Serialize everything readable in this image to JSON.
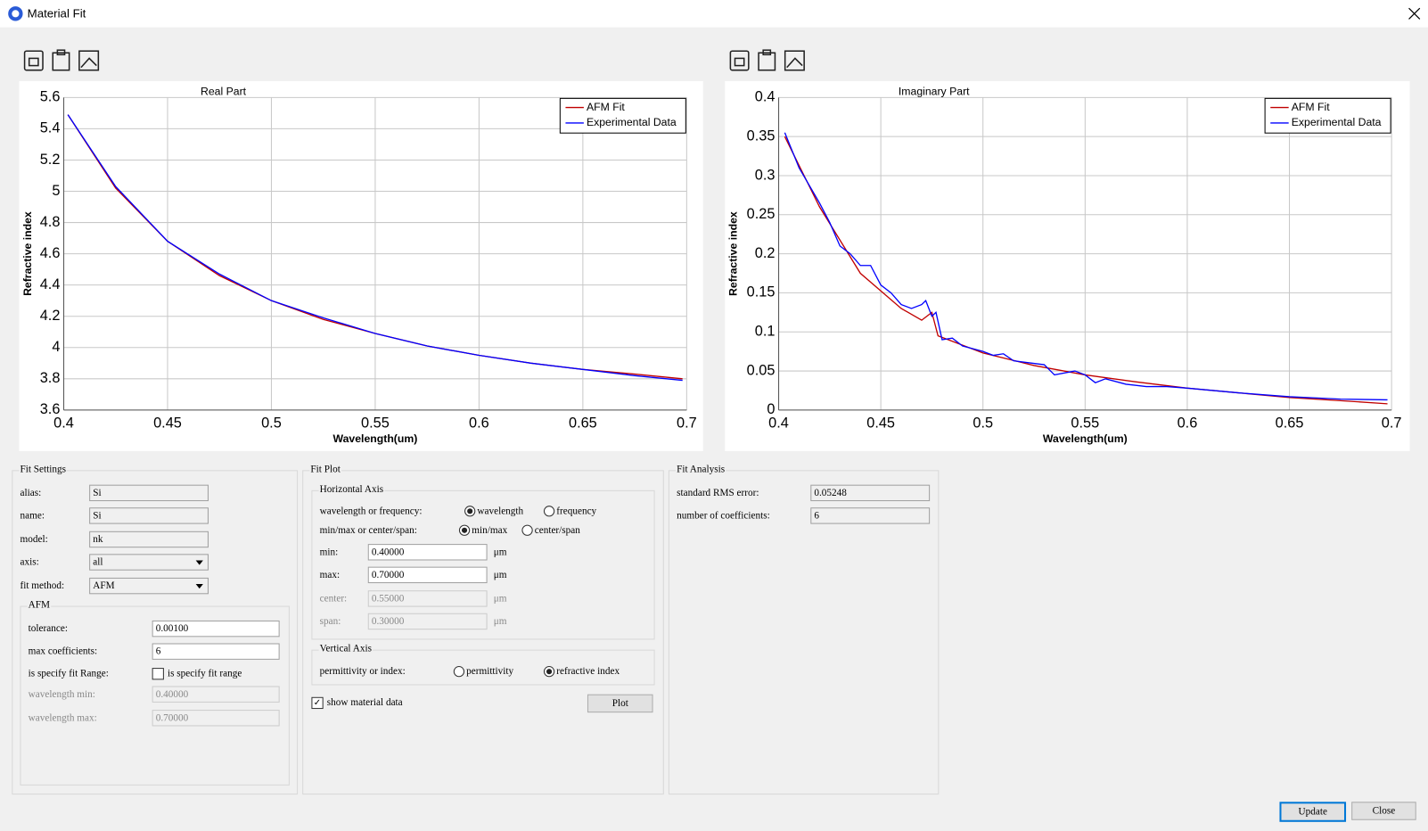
{
  "window": {
    "title": "Material Fit"
  },
  "chart_data": [
    {
      "type": "line",
      "title": "Real Part",
      "x_label": "Wavelength(um)",
      "y_label": "Refractive index",
      "xlim": [
        0.4,
        0.7
      ],
      "xticks": [
        0.4,
        0.45,
        0.5,
        0.55,
        0.6,
        0.65,
        0.7
      ],
      "ylim": [
        3.6,
        5.6
      ],
      "yticks": [
        3.6,
        3.8,
        4,
        4.2,
        4.4,
        4.6,
        4.8,
        5,
        5.2,
        5.4,
        5.6
      ],
      "grid": true,
      "legend": "upper right",
      "series": [
        {
          "name": "AFM Fit",
          "color": "#c00000",
          "x": [
            0.402,
            0.425,
            0.45,
            0.475,
            0.5,
            0.525,
            0.55,
            0.575,
            0.6,
            0.625,
            0.65,
            0.675,
            0.698
          ],
          "values": [
            5.49,
            5.02,
            4.68,
            4.46,
            4.3,
            4.18,
            4.09,
            4.01,
            3.95,
            3.9,
            3.86,
            3.83,
            3.8
          ]
        },
        {
          "name": "Experimental Data",
          "color": "#0000ff",
          "x": [
            0.402,
            0.425,
            0.45,
            0.475,
            0.5,
            0.525,
            0.55,
            0.575,
            0.6,
            0.625,
            0.65,
            0.675,
            0.698
          ],
          "values": [
            5.49,
            5.03,
            4.68,
            4.47,
            4.3,
            4.19,
            4.09,
            4.01,
            3.95,
            3.9,
            3.86,
            3.82,
            3.79
          ]
        }
      ]
    },
    {
      "type": "line",
      "title": "Imaginary Part",
      "x_label": "Wavelength(um)",
      "y_label": "Refractive index",
      "xlim": [
        0.4,
        0.7
      ],
      "xticks": [
        0.4,
        0.45,
        0.5,
        0.55,
        0.6,
        0.65,
        0.7
      ],
      "ylim": [
        0,
        0.4
      ],
      "yticks": [
        0,
        0.05,
        0.1,
        0.15,
        0.2,
        0.25,
        0.3,
        0.35,
        0.4
      ],
      "grid": true,
      "legend": "upper right",
      "series": [
        {
          "name": "AFM Fit",
          "color": "#c00000",
          "x": [
            0.403,
            0.42,
            0.44,
            0.46,
            0.47,
            0.475,
            0.478,
            0.5,
            0.525,
            0.55,
            0.575,
            0.6,
            0.625,
            0.65,
            0.675,
            0.698
          ],
          "values": [
            0.35,
            0.26,
            0.175,
            0.13,
            0.115,
            0.125,
            0.095,
            0.073,
            0.057,
            0.045,
            0.036,
            0.028,
            0.022,
            0.016,
            0.012,
            0.008
          ]
        },
        {
          "name": "Experimental Data",
          "color": "#0000ff",
          "x": [
            0.403,
            0.41,
            0.42,
            0.425,
            0.43,
            0.435,
            0.44,
            0.445,
            0.45,
            0.455,
            0.46,
            0.465,
            0.47,
            0.472,
            0.475,
            0.477,
            0.48,
            0.485,
            0.49,
            0.5,
            0.505,
            0.51,
            0.515,
            0.53,
            0.535,
            0.545,
            0.55,
            0.555,
            0.56,
            0.57,
            0.58,
            0.59,
            0.6,
            0.625,
            0.65,
            0.675,
            0.698
          ],
          "values": [
            0.355,
            0.31,
            0.265,
            0.24,
            0.21,
            0.2,
            0.185,
            0.185,
            0.16,
            0.15,
            0.135,
            0.13,
            0.135,
            0.14,
            0.12,
            0.125,
            0.09,
            0.092,
            0.082,
            0.075,
            0.07,
            0.072,
            0.063,
            0.058,
            0.045,
            0.05,
            0.045,
            0.035,
            0.04,
            0.033,
            0.03,
            0.03,
            0.028,
            0.022,
            0.017,
            0.014,
            0.013
          ]
        }
      ]
    }
  ],
  "fit_settings": {
    "title": "Fit Settings",
    "fields": [
      {
        "label": "alias:",
        "value": "Si"
      },
      {
        "label": "name:",
        "value": "Si"
      },
      {
        "label": "model:",
        "value": "nk"
      },
      {
        "label": "axis:",
        "value": "all"
      },
      {
        "label": "fit method:",
        "value": "AFM"
      }
    ],
    "afm": {
      "title": "AFM",
      "fields": [
        {
          "label": "tolerance:",
          "value": "0.00100"
        },
        {
          "label": "max coefficients:",
          "value": "6"
        },
        {
          "label": "is specify fit Range:",
          "value": "is specify fit range"
        },
        {
          "label": "wavelength min:",
          "value": "0.40000"
        },
        {
          "label": "wavelength max:",
          "value": "0.70000"
        }
      ]
    }
  },
  "fit_plot": {
    "title": "Fit Plot",
    "horizontal": {
      "title": "Horizontal Axis",
      "unit": "μm",
      "choices": [
        {
          "label": "wavelength or frequency:",
          "options": [
            "wavelength",
            "frequency"
          ]
        },
        {
          "label": "min/max or center/span:",
          "options": [
            "min/max",
            "center/span"
          ]
        }
      ],
      "fields": [
        {
          "label": "min:",
          "value": "0.40000"
        },
        {
          "label": "max:",
          "value": "0.70000"
        },
        {
          "label": "center:",
          "value": "0.55000"
        },
        {
          "label": "span:",
          "value": "0.30000"
        }
      ]
    },
    "vertical": {
      "title": "Vertical Axis",
      "label": "permittivity or index:",
      "options": [
        "permittivity",
        "refractive index"
      ]
    },
    "show_material_data": "show material data",
    "button": "Plot"
  },
  "fit_analysis": {
    "title": "Fit Analysis",
    "fields": [
      {
        "label": "standard RMS error:",
        "value": "0.05248"
      },
      {
        "label": "number of coefficients:",
        "value": "6"
      }
    ]
  },
  "buttons": [
    "Update",
    "Close"
  ]
}
